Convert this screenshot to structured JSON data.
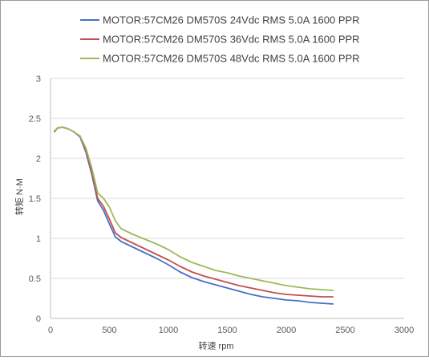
{
  "chart_data": {
    "type": "line",
    "title": "",
    "xlabel": "转速 rpm",
    "ylabel": "转矩 N·M",
    "xlim": [
      0,
      3000
    ],
    "ylim": [
      0,
      3
    ],
    "xticks": [
      "0",
      "500",
      "1000",
      "1500",
      "2000",
      "2500",
      "3000"
    ],
    "yticks": [
      "0",
      "0.5",
      "1",
      "1.5",
      "2",
      "2.5",
      "3"
    ],
    "grid": true,
    "legend_position": "top",
    "series": [
      {
        "name": "MOTOR:57CM26   DM570S 24Vdc  RMS 5.0A  1600 PPR",
        "color": "#4472c4",
        "x": [
          30,
          60,
          100,
          150,
          200,
          250,
          300,
          350,
          400,
          450,
          500,
          550,
          600,
          700,
          800,
          900,
          1000,
          1100,
          1200,
          1300,
          1400,
          1500,
          1600,
          1700,
          1800,
          1900,
          2000,
          2100,
          2200,
          2300,
          2400
        ],
        "y": [
          2.33,
          2.38,
          2.39,
          2.37,
          2.33,
          2.27,
          2.08,
          1.8,
          1.47,
          1.35,
          1.18,
          1.02,
          0.96,
          0.89,
          0.82,
          0.75,
          0.67,
          0.58,
          0.51,
          0.46,
          0.42,
          0.38,
          0.34,
          0.3,
          0.27,
          0.25,
          0.23,
          0.22,
          0.2,
          0.19,
          0.18
        ]
      },
      {
        "name": "MOTOR:57CM26   DM570S 36Vdc  RMS 5.0A  1600 PPR",
        "color": "#c0504d",
        "x": [
          30,
          60,
          100,
          150,
          200,
          250,
          300,
          350,
          400,
          450,
          500,
          550,
          600,
          700,
          800,
          900,
          1000,
          1100,
          1200,
          1300,
          1400,
          1500,
          1600,
          1700,
          1800,
          1900,
          2000,
          2100,
          2200,
          2300,
          2400
        ],
        "y": [
          2.33,
          2.38,
          2.39,
          2.37,
          2.33,
          2.28,
          2.1,
          1.83,
          1.5,
          1.4,
          1.24,
          1.07,
          1.01,
          0.94,
          0.87,
          0.8,
          0.73,
          0.65,
          0.58,
          0.53,
          0.49,
          0.45,
          0.41,
          0.38,
          0.35,
          0.32,
          0.3,
          0.29,
          0.28,
          0.27,
          0.27
        ]
      },
      {
        "name": "MOTOR:57CM26   DM570S 48Vdc  RMS 5.0A  1600 PPR",
        "color": "#9bbb59",
        "x": [
          30,
          60,
          100,
          150,
          200,
          250,
          300,
          350,
          400,
          450,
          500,
          550,
          600,
          700,
          800,
          900,
          1000,
          1100,
          1200,
          1300,
          1400,
          1500,
          1600,
          1700,
          1800,
          1900,
          2000,
          2100,
          2200,
          2300,
          2400
        ],
        "y": [
          2.34,
          2.38,
          2.39,
          2.37,
          2.33,
          2.28,
          2.13,
          1.88,
          1.57,
          1.5,
          1.39,
          1.22,
          1.12,
          1.05,
          0.99,
          0.93,
          0.86,
          0.77,
          0.7,
          0.65,
          0.6,
          0.57,
          0.53,
          0.5,
          0.47,
          0.44,
          0.41,
          0.39,
          0.37,
          0.36,
          0.35
        ]
      }
    ]
  }
}
